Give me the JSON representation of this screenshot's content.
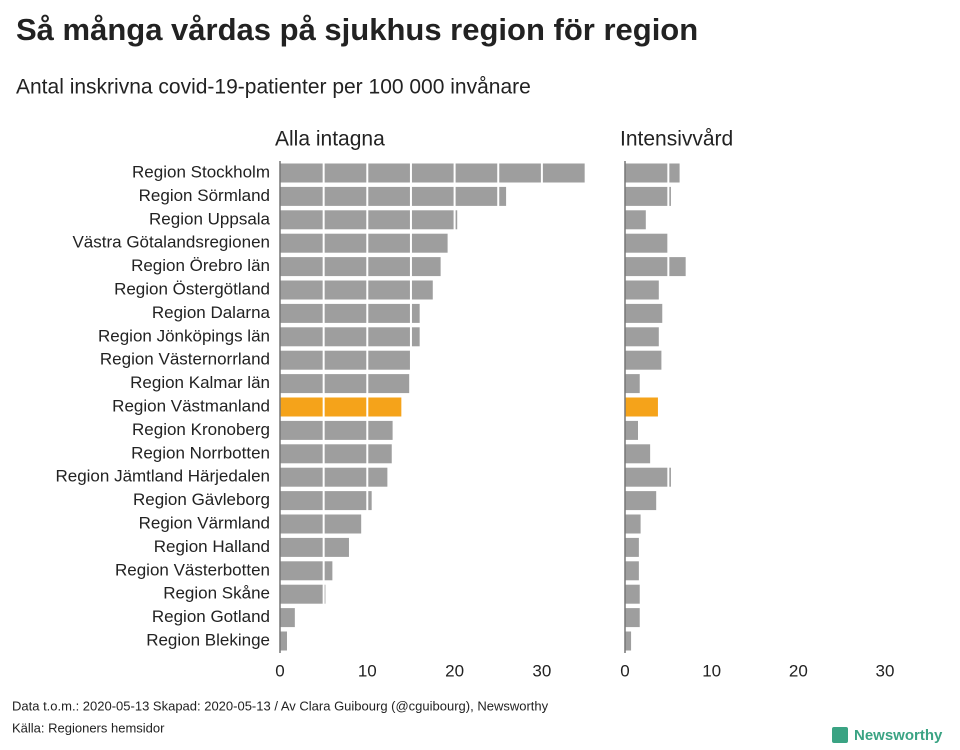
{
  "title": "Så många vårdas på sjukhus region för region",
  "subtitle": "Antal inskrivna covid-19-patienter per 100 000 invånare",
  "footer": [
    "Data t.o.m.: 2020-05-13 Skapad: 2020-05-13 / Av Clara Guibourg (@cguibourg), Newsworthy",
    "Källa: Regioners hemsidor"
  ],
  "brand": "Newsworthy",
  "chart_data": [
    {
      "type": "hbar",
      "title": "Alla intagna",
      "categories": [
        "Region Stockholm",
        "Region Sörmland",
        "Region Uppsala",
        "Västra Götalandsregionen",
        "Region Örebro län",
        "Region Östergötland",
        "Region Dalarna",
        "Region Jönköpings län",
        "Region Västernorrland",
        "Region Kalmar län",
        "Region Västmanland",
        "Region Kronoberg",
        "Region Norrbotten",
        "Region Jämtland Härjedalen",
        "Region Gävleborg",
        "Region Värmland",
        "Region Halland",
        "Region Västerbotten",
        "Region Skåne",
        "Region Gotland",
        "Region Blekinge"
      ],
      "values": [
        34.9,
        25.9,
        20.3,
        19.2,
        18.4,
        17.5,
        16.0,
        16.0,
        14.9,
        14.8,
        13.9,
        12.9,
        12.8,
        12.3,
        10.5,
        9.3,
        7.9,
        6.0,
        5.2,
        1.7,
        0.8
      ],
      "colors": [
        "#9e9e9e",
        "#9e9e9e",
        "#9e9e9e",
        "#9e9e9e",
        "#9e9e9e",
        "#9e9e9e",
        "#9e9e9e",
        "#9e9e9e",
        "#9e9e9e",
        "#9e9e9e",
        "#f5a31a",
        "#9e9e9e",
        "#9e9e9e",
        "#9e9e9e",
        "#9e9e9e",
        "#9e9e9e",
        "#9e9e9e",
        "#9e9e9e",
        "#9e9e9e",
        "#9e9e9e",
        "#9e9e9e"
      ],
      "xlim": [
        0,
        37
      ],
      "xticks": [
        0,
        10,
        20,
        30
      ],
      "xminor": [
        5,
        15,
        25
      ]
    },
    {
      "type": "hbar",
      "title": "Intensivvård",
      "values": [
        6.3,
        5.3,
        2.4,
        5.0,
        7.0,
        3.9,
        4.3,
        3.9,
        4.2,
        1.7,
        3.8,
        1.5,
        2.9,
        5.3,
        3.6,
        1.8,
        1.6,
        1.6,
        1.7,
        1.7,
        0.7
      ],
      "colors": [
        "#9e9e9e",
        "#9e9e9e",
        "#9e9e9e",
        "#9e9e9e",
        "#9e9e9e",
        "#9e9e9e",
        "#9e9e9e",
        "#9e9e9e",
        "#9e9e9e",
        "#9e9e9e",
        "#f5a31a",
        "#9e9e9e",
        "#9e9e9e",
        "#9e9e9e",
        "#9e9e9e",
        "#9e9e9e",
        "#9e9e9e",
        "#9e9e9e",
        "#9e9e9e",
        "#9e9e9e",
        "#9e9e9e"
      ],
      "xlim": [
        0,
        33
      ],
      "xticks": [
        0,
        10,
        20,
        30
      ],
      "xminor": [
        5
      ]
    }
  ]
}
